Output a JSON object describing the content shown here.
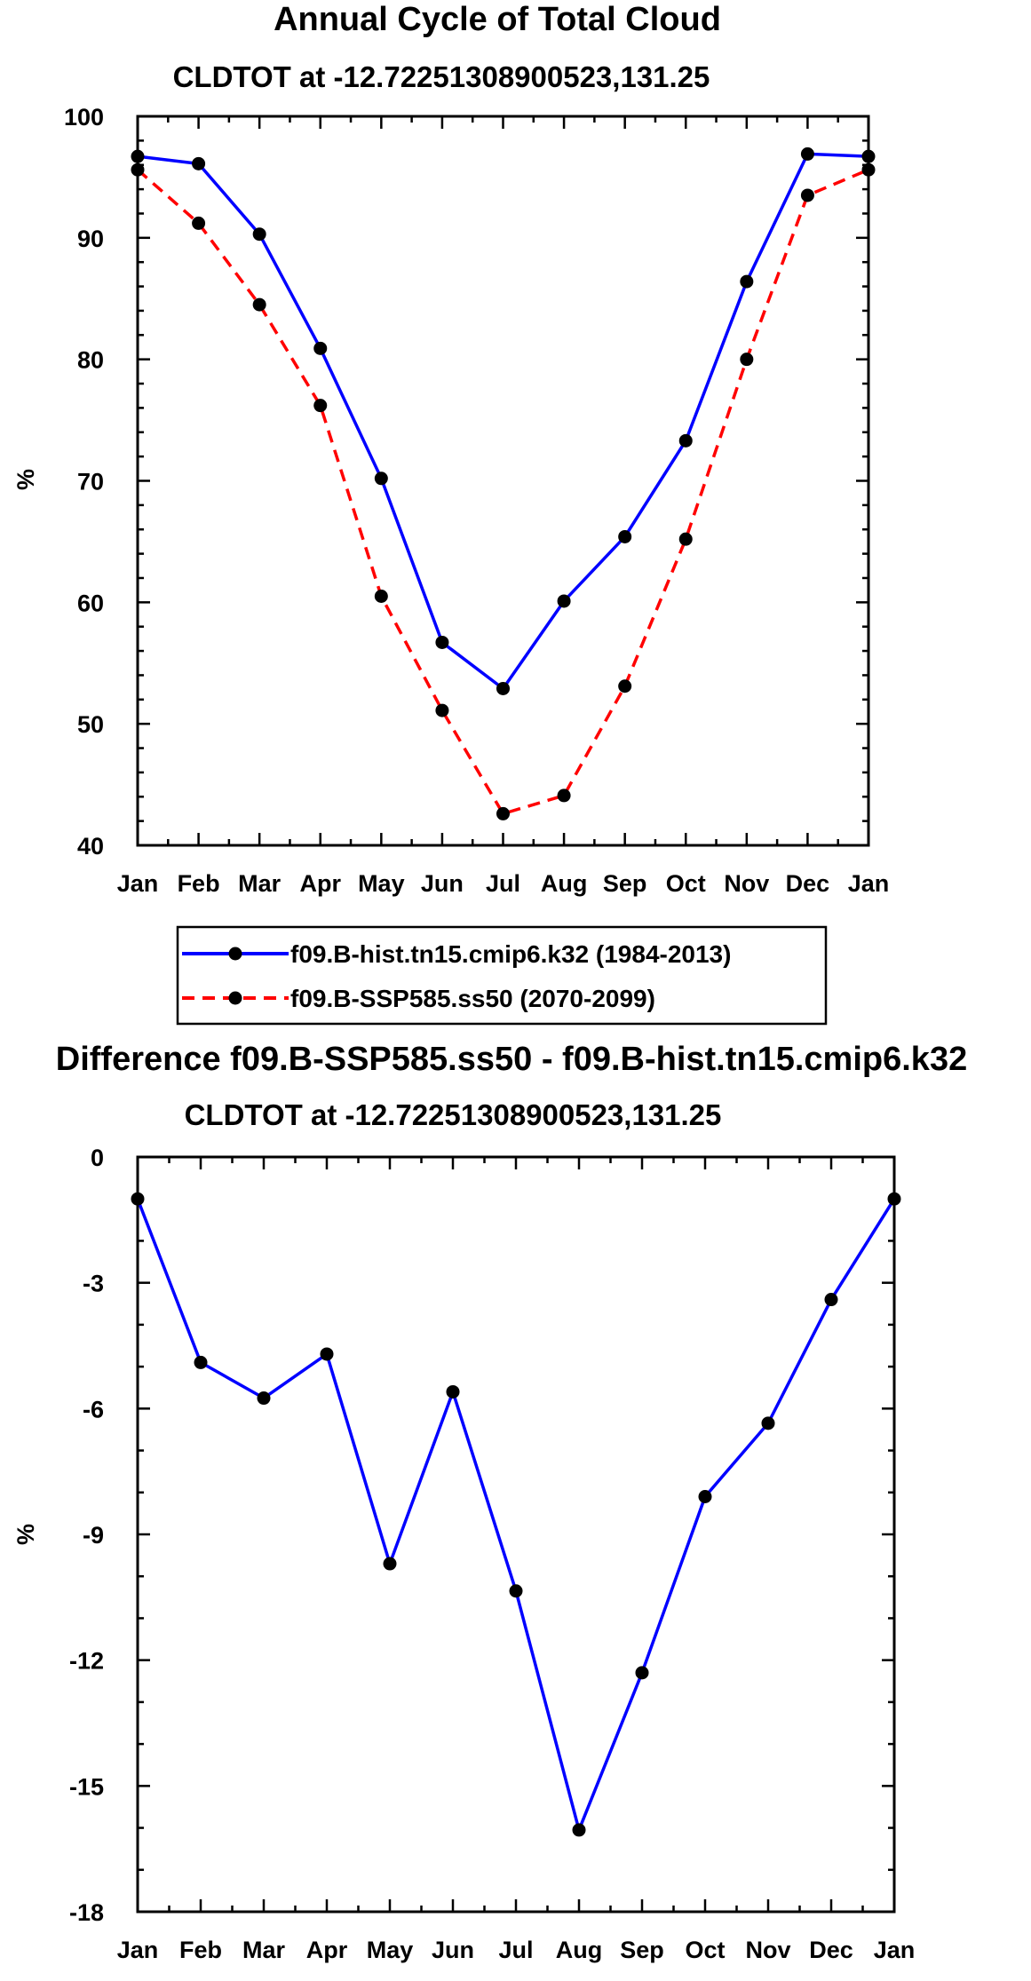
{
  "chart_data": [
    {
      "type": "line",
      "title": "Annual Cycle of Total Cloud",
      "subtitle": "CLDTOT at -12.72251308900523,131.25",
      "xlabel": "",
      "ylabel": "%",
      "categories": [
        "Jan",
        "Feb",
        "Mar",
        "Apr",
        "May",
        "Jun",
        "Jul",
        "Aug",
        "Sep",
        "Oct",
        "Nov",
        "Dec",
        "Jan"
      ],
      "ylim": [
        40,
        100
      ],
      "yticks": [
        "40",
        "50",
        "60",
        "70",
        "80",
        "90",
        "100"
      ],
      "series": [
        {
          "name": "f09.B-hist.tn15.cmip6.k32 (1984-2013)",
          "color": "#0000ff",
          "dash": "solid",
          "values": [
            96.7,
            96.1,
            90.3,
            80.9,
            70.2,
            56.7,
            52.9,
            60.1,
            65.4,
            73.3,
            86.4,
            96.9,
            96.7
          ]
        },
        {
          "name": "f09.B-SSP585.ss50 (2070-2099)",
          "color": "#ff0000",
          "dash": "dashed",
          "values": [
            95.6,
            91.2,
            84.5,
            76.2,
            60.5,
            51.1,
            42.6,
            44.1,
            53.1,
            65.2,
            80.0,
            93.5,
            95.6
          ]
        }
      ],
      "legend": "bottom"
    },
    {
      "type": "line",
      "title": "Difference f09.B-SSP585.ss50 - f09.B-hist.tn15.cmip6.k32",
      "subtitle": "CLDTOT at -12.72251308900523,131.25",
      "xlabel": "",
      "ylabel": "%",
      "categories": [
        "Jan",
        "Feb",
        "Mar",
        "Apr",
        "May",
        "Jun",
        "Jul",
        "Aug",
        "Sep",
        "Oct",
        "Nov",
        "Dec",
        "Jan"
      ],
      "ylim": [
        -18,
        0
      ],
      "yticks": [
        "-18",
        "-15",
        "-12",
        "-9",
        "-6",
        "-3",
        "0"
      ],
      "series": [
        {
          "name": "Difference",
          "color": "#0000ff",
          "dash": "solid",
          "values": [
            -1.0,
            -4.9,
            -5.75,
            -4.7,
            -9.7,
            -5.6,
            -10.35,
            -16.05,
            -12.3,
            -8.1,
            -6.35,
            -3.4,
            -1.0
          ]
        }
      ]
    }
  ]
}
